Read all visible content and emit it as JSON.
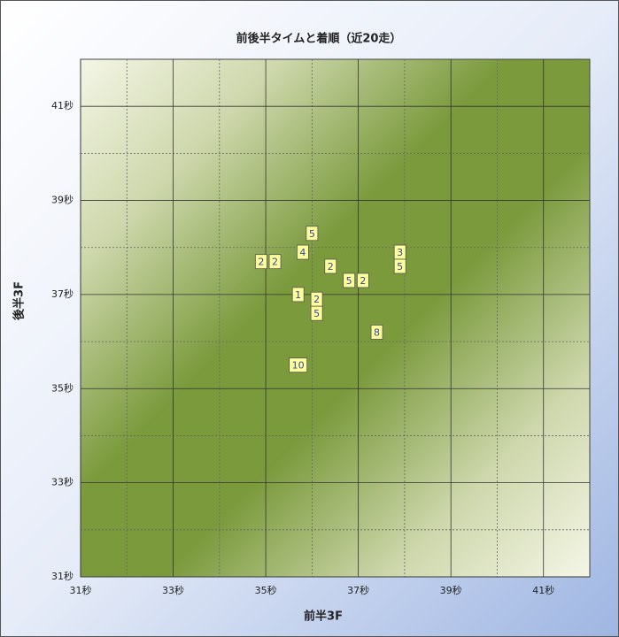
{
  "chart_data": {
    "type": "scatter",
    "title": "前後半タイムと着順（近20走）",
    "x_label": "前半3F",
    "y_label": "後半3F",
    "x": [
      34.9,
      35.2,
      36.0,
      35.8,
      36.4,
      36.8,
      37.1,
      37.9,
      37.9,
      35.7,
      36.1,
      36.1,
      37.4,
      35.7
    ],
    "y": [
      37.7,
      37.7,
      38.3,
      37.9,
      37.6,
      37.3,
      37.3,
      37.9,
      37.6,
      37.0,
      36.9,
      36.6,
      36.2,
      35.5
    ],
    "labels": [
      2,
      2,
      5,
      4,
      2,
      5,
      2,
      3,
      5,
      1,
      2,
      5,
      8,
      10
    ],
    "color": "#ffff99",
    "xlim": [
      31,
      42
    ],
    "ylim": [
      31,
      42
    ],
    "xticks": [
      {
        "value": 31,
        "label": "31秒"
      },
      {
        "value": 33,
        "label": "33秒"
      },
      {
        "value": 35,
        "label": "35秒"
      },
      {
        "value": 37,
        "label": "37秒"
      },
      {
        "value": 39,
        "label": "39秒"
      },
      {
        "value": 41,
        "label": "41秒"
      }
    ],
    "yticks": [
      {
        "value": 31,
        "label": "31秒"
      },
      {
        "value": 33,
        "label": "33秒"
      },
      {
        "value": 35,
        "label": "35秒"
      },
      {
        "value": 37,
        "label": "37秒"
      },
      {
        "value": 39,
        "label": "39秒"
      },
      {
        "value": 41,
        "label": "41秒"
      }
    ],
    "grid": true
  }
}
